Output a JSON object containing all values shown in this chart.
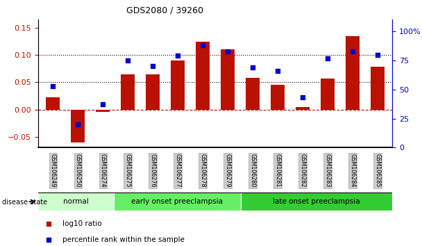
{
  "title": "GDS2080 / 39260",
  "categories": [
    "GSM106249",
    "GSM106250",
    "GSM106274",
    "GSM106275",
    "GSM106276",
    "GSM106277",
    "GSM106278",
    "GSM106279",
    "GSM106280",
    "GSM106281",
    "GSM106282",
    "GSM106283",
    "GSM106284",
    "GSM106285"
  ],
  "log10_ratio": [
    0.023,
    -0.06,
    -0.005,
    0.065,
    0.065,
    0.09,
    0.125,
    0.11,
    0.058,
    0.045,
    0.005,
    0.057,
    0.135,
    0.078
  ],
  "percentile_rank": [
    53,
    20,
    37,
    75,
    70,
    79,
    88,
    83,
    69,
    66,
    43,
    77,
    83,
    80
  ],
  "bar_color": "#bb1100",
  "dot_color": "#0000cc",
  "left_ylim": [
    -0.07,
    0.165
  ],
  "right_ylim": [
    0,
    110
  ],
  "left_yticks": [
    -0.05,
    0.0,
    0.05,
    0.1,
    0.15
  ],
  "right_yticks": [
    0,
    25,
    50,
    75,
    100
  ],
  "right_yticklabels": [
    "0",
    "25",
    "50",
    "75",
    "100%"
  ],
  "hline_y": [
    0.05,
    0.1
  ],
  "zero_line_y": 0.0,
  "disease_groups": [
    {
      "label": "normal",
      "start": 0,
      "end": 3,
      "color": "#ccffcc"
    },
    {
      "label": "early onset preeclampsia",
      "start": 3,
      "end": 8,
      "color": "#66ee66"
    },
    {
      "label": "late onset preeclampsia",
      "start": 8,
      "end": 14,
      "color": "#33cc33"
    }
  ],
  "disease_state_label": "disease state",
  "legend_items": [
    {
      "label": "log10 ratio",
      "color": "#bb1100"
    },
    {
      "label": "percentile rank within the sample",
      "color": "#0000cc"
    }
  ],
  "tick_label_bg": "#cccccc",
  "tick_label_border": "#999999"
}
